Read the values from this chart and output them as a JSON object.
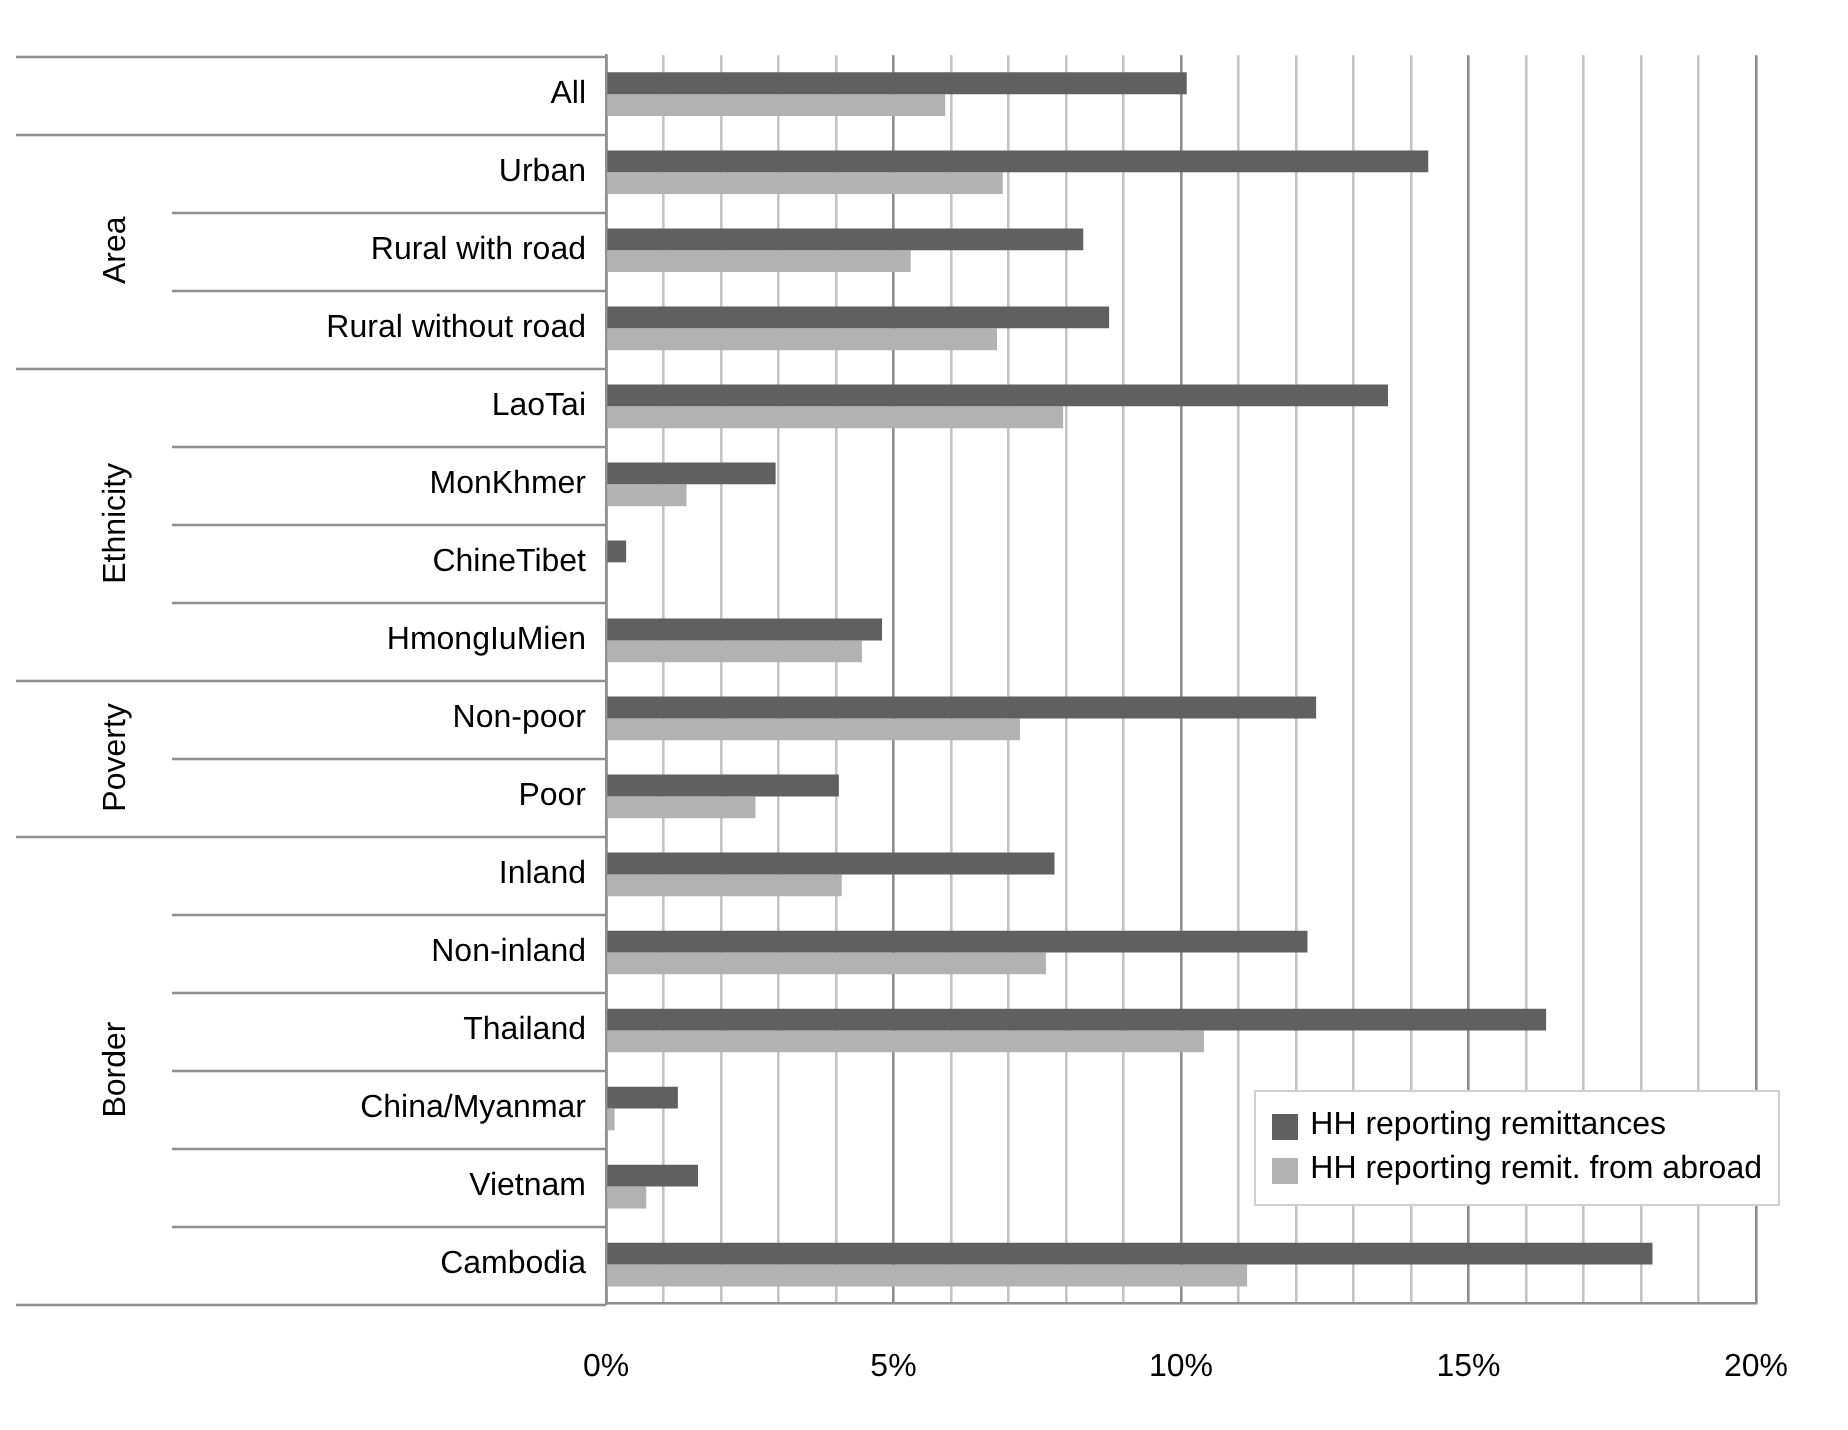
{
  "chart_data": {
    "type": "bar",
    "orientation": "horizontal",
    "categories": [
      "All",
      "Urban",
      "Rural with road",
      "Rural without road",
      "LaoTai",
      "MonKhmer",
      "ChineTibet",
      "HmongIuMien",
      "Non-poor",
      "Poor",
      "Inland",
      "Non-inland",
      "Thailand",
      "China/Myanmar",
      "Vietnam",
      "Cambodia"
    ],
    "series": [
      {
        "name": "HH reporting remittances",
        "color": "#606060",
        "values": [
          10.1,
          14.3,
          8.3,
          8.75,
          13.6,
          2.95,
          0.35,
          4.8,
          12.35,
          4.05,
          7.8,
          12.2,
          16.35,
          1.25,
          1.6,
          18.2
        ]
      },
      {
        "name": "HH reporting remit. from abroad",
        "color": "#b2b2b2",
        "values": [
          5.9,
          6.9,
          5.3,
          6.8,
          7.95,
          1.4,
          0,
          4.45,
          7.2,
          2.6,
          4.1,
          7.65,
          10.4,
          0.15,
          0.7,
          11.15
        ]
      }
    ],
    "xlim": [
      0,
      20
    ],
    "xticks": [
      {
        "value": 0,
        "label": "0%"
      },
      {
        "value": 1,
        "label": null
      },
      {
        "value": 2,
        "label": null
      },
      {
        "value": 3,
        "label": null
      },
      {
        "value": 4,
        "label": null
      },
      {
        "value": 5,
        "label": "5%"
      },
      {
        "value": 6,
        "label": null
      },
      {
        "value": 7,
        "label": null
      },
      {
        "value": 8,
        "label": null
      },
      {
        "value": 9,
        "label": null
      },
      {
        "value": 10,
        "label": "10%"
      },
      {
        "value": 11,
        "label": null
      },
      {
        "value": 12,
        "label": null
      },
      {
        "value": 13,
        "label": null
      },
      {
        "value": 14,
        "label": null
      },
      {
        "value": 15,
        "label": "15%"
      },
      {
        "value": 16,
        "label": null
      },
      {
        "value": 17,
        "label": null
      },
      {
        "value": 18,
        "label": null
      },
      {
        "value": 19,
        "label": null
      },
      {
        "value": 20,
        "label": "20%"
      }
    ],
    "annotations": [
      "Area",
      "Ethnicity",
      "Poverty",
      "Border"
    ],
    "grid": "x",
    "legend": "bottom right"
  }
}
